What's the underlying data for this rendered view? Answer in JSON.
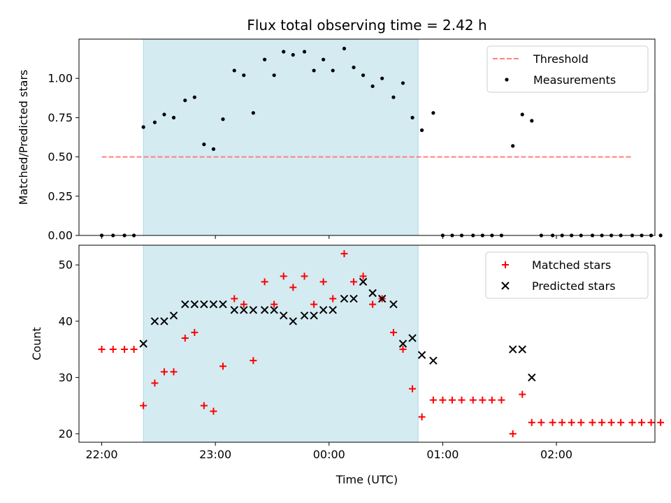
{
  "chart_data": [
    {
      "type": "scatter",
      "title": "Flux total observing time = 2.42 h",
      "ylabel": "Matched/Predicted stars",
      "xlabel": "",
      "ylim": [
        0,
        1.25
      ],
      "yticks": [
        "0.00",
        "0.25",
        "0.50",
        "0.75",
        "1.00"
      ],
      "x_axis": "time-of-night",
      "xlim": [
        "21:48",
        "02:52"
      ],
      "xticks": [
        "22:00",
        "23:00",
        "00:00",
        "01:00",
        "02:00"
      ],
      "shaded_region": {
        "start": "22:22",
        "end": "00:47",
        "color": "#d4ebf2"
      },
      "legend": {
        "placement": "top-right",
        "entries": [
          "Threshold",
          "Measurements"
        ]
      },
      "series": [
        {
          "name": "Threshold",
          "style": "dashed-line",
          "color": "#ff7f7f",
          "points": [
            {
              "t": "22:00",
              "y": 0.5
            },
            {
              "t": "02:40",
              "y": 0.5
            }
          ]
        },
        {
          "name": "Measurements",
          "style": "dot",
          "color": "#000000",
          "points": [
            {
              "t": "22:00",
              "y": 0
            },
            {
              "t": "22:06",
              "y": 0
            },
            {
              "t": "22:12",
              "y": 0
            },
            {
              "t": "22:17",
              "y": 0
            },
            {
              "t": "22:22",
              "y": 0.69
            },
            {
              "t": "22:28",
              "y": 0.72
            },
            {
              "t": "22:33",
              "y": 0.77
            },
            {
              "t": "22:38",
              "y": 0.75
            },
            {
              "t": "22:44",
              "y": 0.86
            },
            {
              "t": "22:49",
              "y": 0.88
            },
            {
              "t": "22:54",
              "y": 0.58
            },
            {
              "t": "22:59",
              "y": 0.55
            },
            {
              "t": "23:04",
              "y": 0.74
            },
            {
              "t": "23:10",
              "y": 1.05
            },
            {
              "t": "23:15",
              "y": 1.02
            },
            {
              "t": "23:20",
              "y": 0.78
            },
            {
              "t": "23:26",
              "y": 1.12
            },
            {
              "t": "23:31",
              "y": 1.02
            },
            {
              "t": "23:36",
              "y": 1.17
            },
            {
              "t": "23:41",
              "y": 1.15
            },
            {
              "t": "23:47",
              "y": 1.17
            },
            {
              "t": "23:52",
              "y": 1.05
            },
            {
              "t": "23:57",
              "y": 1.12
            },
            {
              "t": "00:02",
              "y": 1.05
            },
            {
              "t": "00:08",
              "y": 1.19
            },
            {
              "t": "00:13",
              "y": 1.07
            },
            {
              "t": "00:18",
              "y": 1.02
            },
            {
              "t": "00:23",
              "y": 0.95
            },
            {
              "t": "00:28",
              "y": 1.0
            },
            {
              "t": "00:34",
              "y": 0.88
            },
            {
              "t": "00:39",
              "y": 0.97
            },
            {
              "t": "00:44",
              "y": 0.75
            },
            {
              "t": "00:49",
              "y": 0.67
            },
            {
              "t": "00:55",
              "y": 0.78
            },
            {
              "t": "01:00",
              "y": 0
            },
            {
              "t": "01:05",
              "y": 0
            },
            {
              "t": "01:10",
              "y": 0
            },
            {
              "t": "01:16",
              "y": 0
            },
            {
              "t": "01:21",
              "y": 0
            },
            {
              "t": "01:26",
              "y": 0
            },
            {
              "t": "01:31",
              "y": 0
            },
            {
              "t": "01:37",
              "y": 0.57
            },
            {
              "t": "01:42",
              "y": 0.77
            },
            {
              "t": "01:47",
              "y": 0.73
            },
            {
              "t": "01:52",
              "y": 0
            },
            {
              "t": "01:58",
              "y": 0
            },
            {
              "t": "02:03",
              "y": 0
            },
            {
              "t": "02:08",
              "y": 0
            },
            {
              "t": "02:13",
              "y": 0
            },
            {
              "t": "02:19",
              "y": 0
            },
            {
              "t": "02:24",
              "y": 0
            },
            {
              "t": "02:29",
              "y": 0
            },
            {
              "t": "02:34",
              "y": 0
            },
            {
              "t": "02:40",
              "y": 0
            },
            {
              "t": "02:45",
              "y": 0
            },
            {
              "t": "02:50",
              "y": 0
            },
            {
              "t": "02:55",
              "y": 0
            }
          ]
        }
      ]
    },
    {
      "type": "scatter",
      "title": "",
      "ylabel": "Count",
      "xlabel": "Time (UTC)",
      "ylim": [
        18.5,
        53.5
      ],
      "yticks": [
        "20",
        "30",
        "40",
        "50"
      ],
      "x_axis": "time-of-night",
      "xlim": [
        "21:48",
        "02:52"
      ],
      "xticks": [
        "22:00",
        "23:00",
        "00:00",
        "01:00",
        "02:00"
      ],
      "shaded_region": {
        "start": "22:22",
        "end": "00:47",
        "color": "#d4ebf2"
      },
      "legend": {
        "placement": "top-right",
        "entries": [
          "Matched stars",
          "Predicted stars"
        ]
      },
      "series": [
        {
          "name": "Matched stars",
          "style": "plus",
          "color": "#ff0000",
          "points": [
            {
              "t": "22:00",
              "y": 35
            },
            {
              "t": "22:06",
              "y": 35
            },
            {
              "t": "22:12",
              "y": 35
            },
            {
              "t": "22:17",
              "y": 35
            },
            {
              "t": "22:22",
              "y": 25
            },
            {
              "t": "22:28",
              "y": 29
            },
            {
              "t": "22:33",
              "y": 31
            },
            {
              "t": "22:38",
              "y": 31
            },
            {
              "t": "22:44",
              "y": 37
            },
            {
              "t": "22:49",
              "y": 38
            },
            {
              "t": "22:54",
              "y": 25
            },
            {
              "t": "22:59",
              "y": 24
            },
            {
              "t": "23:04",
              "y": 32
            },
            {
              "t": "23:10",
              "y": 44
            },
            {
              "t": "23:15",
              "y": 43
            },
            {
              "t": "23:20",
              "y": 33
            },
            {
              "t": "23:26",
              "y": 47
            },
            {
              "t": "23:31",
              "y": 43
            },
            {
              "t": "23:36",
              "y": 48
            },
            {
              "t": "23:41",
              "y": 46
            },
            {
              "t": "23:47",
              "y": 48
            },
            {
              "t": "23:52",
              "y": 43
            },
            {
              "t": "23:57",
              "y": 47
            },
            {
              "t": "00:02",
              "y": 44
            },
            {
              "t": "00:08",
              "y": 52
            },
            {
              "t": "00:13",
              "y": 47
            },
            {
              "t": "00:18",
              "y": 48
            },
            {
              "t": "00:23",
              "y": 43
            },
            {
              "t": "00:28",
              "y": 44
            },
            {
              "t": "00:34",
              "y": 38
            },
            {
              "t": "00:39",
              "y": 35
            },
            {
              "t": "00:44",
              "y": 28
            },
            {
              "t": "00:49",
              "y": 23
            },
            {
              "t": "00:55",
              "y": 26
            },
            {
              "t": "01:00",
              "y": 26
            },
            {
              "t": "01:05",
              "y": 26
            },
            {
              "t": "01:10",
              "y": 26
            },
            {
              "t": "01:16",
              "y": 26
            },
            {
              "t": "01:21",
              "y": 26
            },
            {
              "t": "01:26",
              "y": 26
            },
            {
              "t": "01:31",
              "y": 26
            },
            {
              "t": "01:37",
              "y": 20
            },
            {
              "t": "01:42",
              "y": 27
            },
            {
              "t": "01:47",
              "y": 22
            },
            {
              "t": "01:52",
              "y": 22
            },
            {
              "t": "01:58",
              "y": 22
            },
            {
              "t": "02:03",
              "y": 22
            },
            {
              "t": "02:08",
              "y": 22
            },
            {
              "t": "02:13",
              "y": 22
            },
            {
              "t": "02:19",
              "y": 22
            },
            {
              "t": "02:24",
              "y": 22
            },
            {
              "t": "02:29",
              "y": 22
            },
            {
              "t": "02:34",
              "y": 22
            },
            {
              "t": "02:40",
              "y": 22
            },
            {
              "t": "02:45",
              "y": 22
            },
            {
              "t": "02:50",
              "y": 22
            },
            {
              "t": "02:55",
              "y": 22
            }
          ]
        },
        {
          "name": "Predicted stars",
          "style": "x",
          "color": "#000000",
          "points": [
            {
              "t": "22:22",
              "y": 36
            },
            {
              "t": "22:28",
              "y": 40
            },
            {
              "t": "22:33",
              "y": 40
            },
            {
              "t": "22:38",
              "y": 41
            },
            {
              "t": "22:44",
              "y": 43
            },
            {
              "t": "22:49",
              "y": 43
            },
            {
              "t": "22:54",
              "y": 43
            },
            {
              "t": "22:59",
              "y": 43
            },
            {
              "t": "23:04",
              "y": 43
            },
            {
              "t": "23:10",
              "y": 42
            },
            {
              "t": "23:15",
              "y": 42
            },
            {
              "t": "23:20",
              "y": 42
            },
            {
              "t": "23:26",
              "y": 42
            },
            {
              "t": "23:31",
              "y": 42
            },
            {
              "t": "23:36",
              "y": 41
            },
            {
              "t": "23:41",
              "y": 40
            },
            {
              "t": "23:47",
              "y": 41
            },
            {
              "t": "23:52",
              "y": 41
            },
            {
              "t": "23:57",
              "y": 42
            },
            {
              "t": "00:02",
              "y": 42
            },
            {
              "t": "00:08",
              "y": 44
            },
            {
              "t": "00:13",
              "y": 44
            },
            {
              "t": "00:18",
              "y": 47
            },
            {
              "t": "00:23",
              "y": 45
            },
            {
              "t": "00:28",
              "y": 44
            },
            {
              "t": "00:34",
              "y": 43
            },
            {
              "t": "00:39",
              "y": 36
            },
            {
              "t": "00:44",
              "y": 37
            },
            {
              "t": "00:49",
              "y": 34
            },
            {
              "t": "00:55",
              "y": 33
            },
            {
              "t": "01:37",
              "y": 35
            },
            {
              "t": "01:42",
              "y": 35
            },
            {
              "t": "01:47",
              "y": 30
            }
          ]
        }
      ]
    }
  ]
}
